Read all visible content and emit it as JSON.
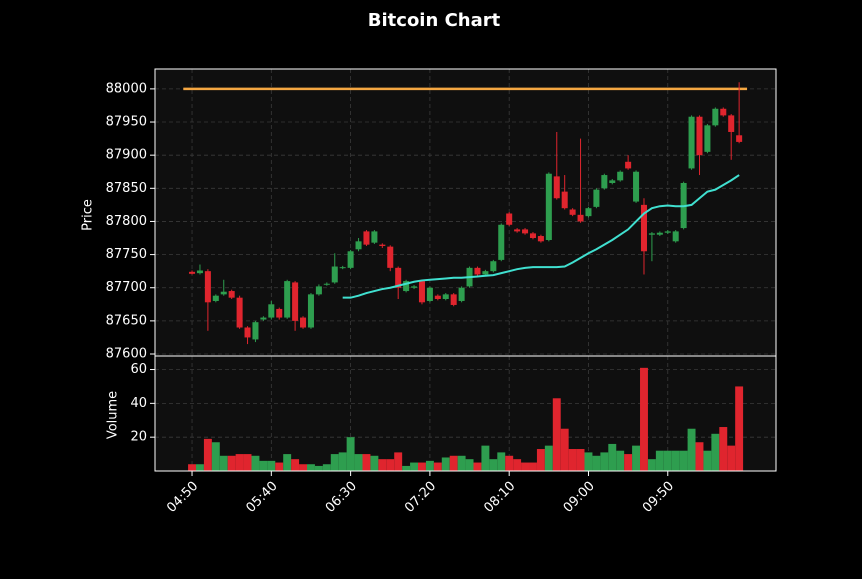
{
  "chart_data": [
    {
      "type": "candlestick",
      "title": "Bitcoin Chart",
      "ylabel": "Price",
      "open": [
        87724,
        87722,
        87725,
        87680,
        87690,
        87695,
        87685,
        87640,
        87622,
        87652,
        87655,
        87668,
        87655,
        87708,
        87655,
        87640,
        87690,
        87705,
        87708,
        87730,
        87730,
        87758,
        87785,
        87768,
        87765,
        87762,
        87730,
        87695,
        87700,
        87710,
        87680,
        87688,
        87683,
        87690,
        87680,
        87702,
        87730,
        87720,
        87725,
        87742,
        87812,
        87788,
        87788,
        87782,
        87778,
        87772,
        87868,
        87845,
        87818,
        87810,
        87808,
        87822,
        87850,
        87858,
        87862,
        87890,
        87830,
        87825,
        87780,
        87780,
        87783,
        87770,
        87790,
        87880,
        87958,
        87905,
        87945,
        87970,
        87960,
        87930
      ],
      "high": [
        87726,
        87735,
        87728,
        87690,
        87712,
        87697,
        87688,
        87642,
        87650,
        87657,
        87680,
        87670,
        87712,
        87710,
        87657,
        87692,
        87705,
        87708,
        87752,
        87733,
        87757,
        87775,
        87787,
        87787,
        87767,
        87764,
        87732,
        87712,
        87704,
        87712,
        87702,
        87690,
        87692,
        87692,
        87702,
        87732,
        87732,
        87727,
        87742,
        87797,
        87814,
        87790,
        87790,
        87784,
        87780,
        87874,
        87935,
        87870,
        87820,
        87925,
        87822,
        87850,
        87872,
        87864,
        87877,
        87900,
        87877,
        87835,
        87784,
        87785,
        87787,
        87787,
        87860,
        87960,
        87960,
        87947,
        87972,
        87972,
        87962,
        88010
      ],
      "low": [
        87720,
        87720,
        87635,
        87678,
        87688,
        87683,
        87638,
        87615,
        87618,
        87650,
        87652,
        87652,
        87653,
        87635,
        87638,
        87638,
        87688,
        87703,
        87706,
        87728,
        87728,
        87755,
        87763,
        87766,
        87760,
        87725,
        87683,
        87693,
        87698,
        87675,
        87678,
        87681,
        87681,
        87672,
        87678,
        87700,
        87718,
        87718,
        87723,
        87740,
        87793,
        87783,
        87780,
        87773,
        87768,
        87770,
        87833,
        87818,
        87808,
        87798,
        87806,
        87820,
        87848,
        87856,
        87860,
        87878,
        87828,
        87720,
        87740,
        87778,
        87781,
        87768,
        87788,
        87878,
        87870,
        87903,
        87943,
        87958,
        87893,
        87918
      ],
      "close": [
        87721,
        87726,
        87678,
        87688,
        87694,
        87685,
        87640,
        87625,
        87648,
        87655,
        87675,
        87655,
        87710,
        87650,
        87640,
        87690,
        87702,
        87706,
        87732,
        87731,
        87755,
        87770,
        87765,
        87785,
        87763,
        87730,
        87700,
        87710,
        87702,
        87678,
        87700,
        87683,
        87690,
        87674,
        87700,
        87730,
        87720,
        87725,
        87740,
        87795,
        87795,
        87785,
        87782,
        87775,
        87770,
        87872,
        87835,
        87820,
        87810,
        87800,
        87820,
        87848,
        87870,
        87862,
        87875,
        87880,
        87875,
        87755,
        87782,
        87783,
        87785,
        87785,
        87858,
        87958,
        87900,
        87945,
        87970,
        87960,
        87935,
        87920
      ],
      "ma": [
        null,
        null,
        null,
        null,
        null,
        null,
        null,
        null,
        null,
        null,
        null,
        null,
        null,
        null,
        null,
        null,
        null,
        null,
        null,
        87685,
        87685,
        87688,
        87692,
        87695,
        87698,
        87700,
        87703,
        87706,
        87709,
        87711,
        87712,
        87713,
        87714,
        87715,
        87715,
        87716,
        87717,
        87718,
        87719,
        87722,
        87725,
        87728,
        87730,
        87731,
        87731,
        87731,
        87731,
        87732,
        87738,
        87745,
        87752,
        87758,
        87765,
        87772,
        87780,
        87788,
        87800,
        87812,
        87820,
        87823,
        87824,
        87823,
        87823,
        87825,
        87835,
        87845,
        87848,
        87855,
        87862,
        87870
      ],
      "ma_color": "#40e0d0",
      "level": {
        "value": 88000,
        "color": "#f5a742"
      },
      "up_color": "#2e9e4f",
      "down_color": "#e0252e",
      "ylim": [
        87597,
        88030
      ],
      "yticks": [
        87600,
        87650,
        87700,
        87750,
        87800,
        87850,
        87900,
        87950,
        88000
      ],
      "grid": true
    },
    {
      "type": "volume",
      "ylabel": "Volume",
      "values": [
        4,
        4,
        19,
        17,
        9,
        9,
        10,
        10,
        9,
        6,
        6,
        5,
        10,
        7,
        4,
        4,
        3,
        4,
        10,
        11,
        20,
        10,
        10,
        9,
        7,
        7,
        11,
        3,
        5,
        5,
        6,
        5,
        8,
        9,
        9,
        7,
        5,
        15,
        7,
        11,
        9,
        7,
        5,
        5,
        13,
        15,
        43,
        25,
        13,
        13,
        11,
        9,
        11,
        16,
        12,
        10,
        15,
        61,
        7,
        12,
        12,
        12,
        12,
        25,
        17,
        12,
        22,
        26,
        15,
        50
      ],
      "ylim": [
        0,
        68
      ],
      "yticks": [
        20,
        40,
        60
      ],
      "grid": true,
      "xlim": [
        -4.67,
        73.65
      ],
      "xticks": [
        {
          "value": 0,
          "label": "04:50"
        },
        {
          "value": 10,
          "label": "05:40"
        },
        {
          "value": 20,
          "label": "06:30"
        },
        {
          "value": 30,
          "label": "07:20"
        },
        {
          "value": 40,
          "label": "08:10"
        },
        {
          "value": 50,
          "label": "09:00"
        },
        {
          "value": 60,
          "label": "09:50"
        }
      ]
    }
  ]
}
